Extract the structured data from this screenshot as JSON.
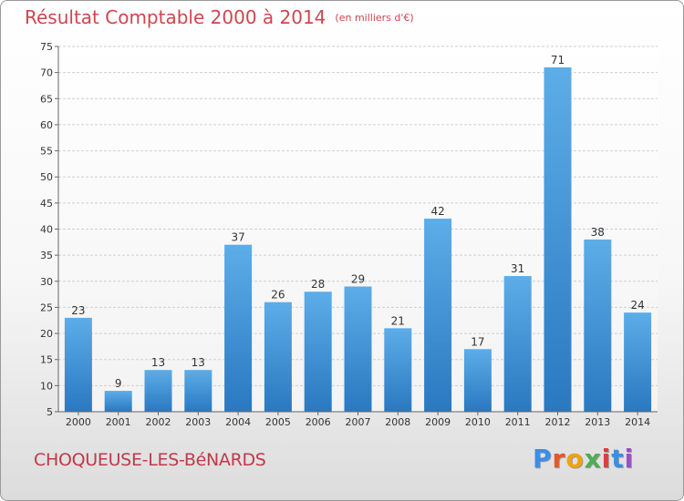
{
  "chart_data": {
    "type": "bar",
    "title": "Résultat Comptable 2000 à 2014",
    "unit_label": "(en milliers d'€)",
    "categories": [
      "2000",
      "2001",
      "2002",
      "2003",
      "2004",
      "2005",
      "2006",
      "2007",
      "2008",
      "2009",
      "2010",
      "2011",
      "2012",
      "2013",
      "2014"
    ],
    "values": [
      23,
      9,
      13,
      13,
      37,
      26,
      28,
      29,
      21,
      42,
      17,
      31,
      71,
      38,
      24
    ],
    "yticks": [
      5,
      10,
      15,
      20,
      25,
      30,
      35,
      40,
      45,
      50,
      55,
      60,
      65,
      70,
      75
    ],
    "ylim": [
      5,
      75
    ],
    "grid": true,
    "bar_color": "#3f8fd4",
    "xlabel": "",
    "ylabel": ""
  },
  "footer": {
    "town": "CHOQUEUSE-LES-BéNARDS",
    "logo_letters": [
      "P",
      "r",
      "o",
      "x",
      "i",
      "t",
      "i"
    ],
    "logo_colors": [
      "#3a8ee6",
      "#e8562a",
      "#f0a30a",
      "#4caf50",
      "#e23c3c",
      "#3a8ee6",
      "#9c4fc4"
    ]
  }
}
